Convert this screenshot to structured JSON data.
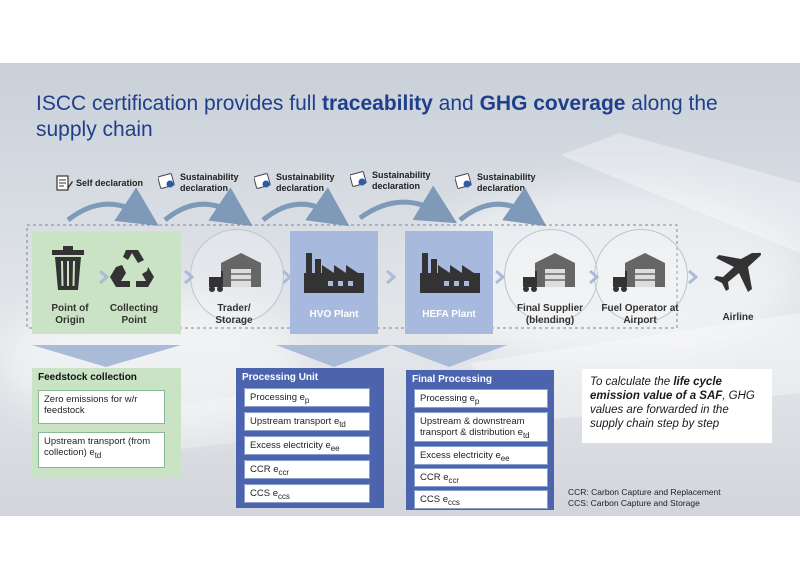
{
  "title": {
    "part1": "ISCC certification provides full ",
    "bold1": "traceability",
    "part2": " and ",
    "bold2": "GHG coverage",
    "part3": " along the supply chain"
  },
  "declarations": [
    {
      "label": "Self declaration",
      "icon": "document-pen-icon"
    },
    {
      "label": "Sustainability declaration",
      "icon": "iscc-certificate-icon"
    },
    {
      "label": "Sustainability declaration",
      "icon": "iscc-certificate-icon"
    },
    {
      "label": "Sustainability declaration",
      "icon": "iscc-certificate-icon"
    },
    {
      "label": "Sustainability declaration",
      "icon": "iscc-certificate-icon"
    }
  ],
  "stages": [
    {
      "label": "Point of Origin",
      "icon": "trash-bin-icon"
    },
    {
      "label": "Collecting Point",
      "icon": "recycle-icon"
    },
    {
      "label": "Trader/ Storage",
      "icon": "warehouse-forklift-icon"
    },
    {
      "label": "HVO Plant",
      "icon": "factory-icon"
    },
    {
      "label": "HEFA Plant",
      "icon": "factory-icon"
    },
    {
      "label": "Final Supplier (blending)",
      "icon": "warehouse-forklift-icon"
    },
    {
      "label": "Fuel Operator at Airport",
      "icon": "warehouse-forklift-icon"
    },
    {
      "label": "Airline",
      "icon": "airplane-icon"
    }
  ],
  "panels": {
    "feedstock": {
      "header": "Feedstock collection",
      "items": [
        {
          "text": "Zero emissions for w/r feedstock",
          "sub": ""
        },
        {
          "text": "Upstream transport (from collection) e",
          "sub": "td"
        }
      ]
    },
    "processing": {
      "header": "Processing Unit",
      "items": [
        {
          "text": "Processing e",
          "sub": "p"
        },
        {
          "text": "Upstream transport e",
          "sub": "td"
        },
        {
          "text": "Excess electricity e",
          "sub": "ee"
        },
        {
          "text": "CCR e",
          "sub": "ccr"
        },
        {
          "text": "CCS e",
          "sub": "ccs"
        }
      ]
    },
    "final": {
      "header": "Final Processing",
      "items": [
        {
          "text": "Processing e",
          "sub": "p"
        },
        {
          "text": "Upstream & downstream transport & distribution e",
          "sub": "td"
        },
        {
          "text": "Excess electricity e",
          "sub": "ee"
        },
        {
          "text": "CCR e",
          "sub": "ccr"
        },
        {
          "text": "CCS e",
          "sub": "ccs"
        }
      ]
    }
  },
  "note": {
    "part1": "To calculate the ",
    "bold1": "life cycle emission value of a SAF",
    "part2": ", GHG values are forwarded in the supply chain step by step"
  },
  "abbreviations": [
    "CCR: Carbon Capture and Replacement",
    "CCS: Carbon Capture and Storage"
  ],
  "colors": {
    "title": "#1f3f8a",
    "green_fill": "#c9e3c4",
    "green_header": "#b6d9b0",
    "blue_fill": "#a8b9de",
    "blue_header": "#4c63ad",
    "chevron": "#aabbd8",
    "arc": "#7f9ab9"
  }
}
